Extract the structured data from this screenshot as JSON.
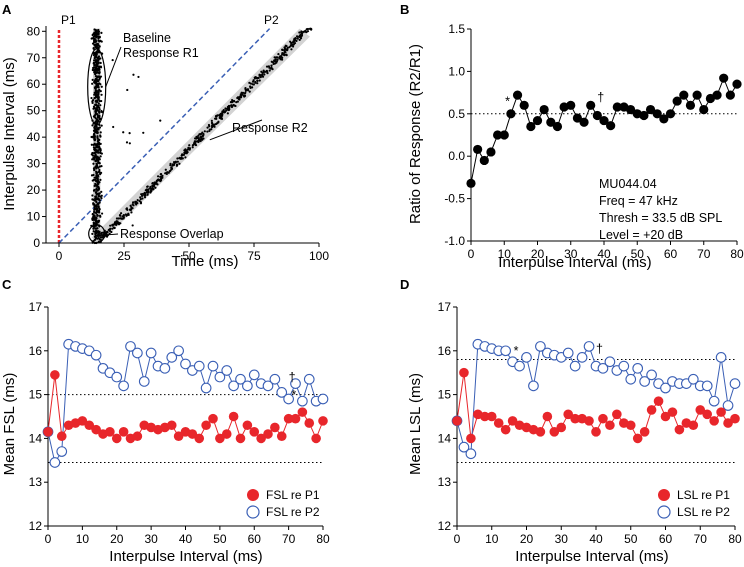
{
  "chart_data": [
    {
      "panel": "A",
      "type": "scatter",
      "xlabel": "Time (ms)",
      "ylabel": "Interpulse Interval (ms)",
      "xlim": [
        -5,
        100
      ],
      "ylim": [
        0,
        82
      ],
      "xticks": [
        0,
        25,
        50,
        75,
        100
      ],
      "yticks": [
        0,
        10,
        20,
        30,
        40,
        50,
        60,
        70,
        80
      ],
      "markers": [
        {
          "name": "P1",
          "color": "#e8262b"
        },
        {
          "name": "P2",
          "color": "#3a5fb5"
        }
      ],
      "annotations": {
        "baseline": [
          "Baseline",
          "Response R1"
        ],
        "response2": "Response R2",
        "overlap": "Response Overlap"
      },
      "series": [
        {
          "name": "Baseline Response R1",
          "latency_ms": 14.5
        },
        {
          "name": "Response R2",
          "latency_offset_ms": 14.5
        }
      ]
    },
    {
      "panel": "B",
      "type": "line",
      "xlabel": "Interpulse Interval (ms)",
      "ylabel": "Ratio of Response (R2/R1)",
      "xlim": [
        0,
        80
      ],
      "ylim": [
        -1.0,
        1.5
      ],
      "xticks": [
        0,
        10,
        20,
        30,
        40,
        50,
        60,
        70,
        80
      ],
      "yticks": [
        "-1.0",
        "-0.5",
        "0.0",
        "0.5",
        "1.0",
        "1.5"
      ],
      "reference_line": 0.5,
      "x": [
        0,
        2,
        4,
        6,
        8,
        10,
        12,
        14,
        16,
        18,
        20,
        22,
        24,
        26,
        28,
        30,
        32,
        34,
        36,
        38,
        40,
        42,
        44,
        46,
        48,
        50,
        52,
        54,
        56,
        58,
        60,
        62,
        64,
        66,
        68,
        70,
        72,
        74,
        76,
        78,
        80
      ],
      "values": [
        -0.32,
        0.08,
        -0.05,
        0.05,
        0.25,
        0.25,
        0.5,
        0.72,
        0.6,
        0.35,
        0.42,
        0.55,
        0.4,
        0.35,
        0.58,
        0.6,
        0.45,
        0.4,
        0.6,
        0.48,
        0.42,
        0.36,
        0.58,
        0.58,
        0.55,
        0.5,
        0.48,
        0.55,
        0.5,
        0.44,
        0.5,
        0.65,
        0.72,
        0.6,
        0.72,
        0.55,
        0.68,
        0.72,
        0.92,
        0.72,
        0.85
      ],
      "markers": [
        {
          "label": "*",
          "x": 11,
          "y": 0.62
        },
        {
          "label": "†",
          "x": 39,
          "y": 0.67
        }
      ],
      "info": [
        "MU044.04",
        "Freq = 47 kHz",
        "Thresh = 33.5 dB SPL",
        "Level = +20 dB"
      ]
    },
    {
      "panel": "C",
      "type": "line",
      "xlabel": "Interpulse Interval (ms)",
      "ylabel": "Mean FSL (ms)",
      "xlim": [
        0,
        80
      ],
      "ylim": [
        12,
        17
      ],
      "xticks": [
        0,
        10,
        20,
        30,
        40,
        50,
        60,
        70,
        80
      ],
      "yticks": [
        12,
        13,
        14,
        15,
        16,
        17
      ],
      "reference_lines": [
        15.0,
        13.45
      ],
      "x": [
        0,
        2,
        4,
        6,
        8,
        10,
        12,
        14,
        16,
        18,
        20,
        22,
        24,
        26,
        28,
        30,
        32,
        34,
        36,
        38,
        40,
        42,
        44,
        46,
        48,
        50,
        52,
        54,
        56,
        58,
        60,
        62,
        64,
        66,
        68,
        70,
        72,
        74,
        76,
        78,
        80
      ],
      "series": [
        {
          "name": "FSL re P1",
          "color": "#e8262b",
          "filled": true,
          "values": [
            14.15,
            15.45,
            14.05,
            14.3,
            14.35,
            14.4,
            14.3,
            14.2,
            14.1,
            14.15,
            14.0,
            14.15,
            14.0,
            14.05,
            14.3,
            14.25,
            14.2,
            14.25,
            14.3,
            14.05,
            14.15,
            14.1,
            14.0,
            14.3,
            14.45,
            14.0,
            14.1,
            14.5,
            14.0,
            14.3,
            14.15,
            14.0,
            14.1,
            14.25,
            14.05,
            14.45,
            14.45,
            14.6,
            14.35,
            14.0,
            14.4
          ]
        },
        {
          "name": "FSL re P2",
          "color": "#3a5fb5",
          "filled": false,
          "values": [
            14.15,
            13.45,
            13.7,
            16.15,
            16.1,
            16.05,
            16.0,
            15.9,
            15.6,
            15.5,
            15.4,
            15.2,
            16.1,
            15.95,
            15.3,
            15.95,
            15.65,
            15.6,
            15.85,
            16.0,
            15.7,
            15.55,
            15.65,
            15.15,
            15.65,
            15.4,
            15.55,
            15.2,
            15.35,
            15.2,
            15.45,
            15.25,
            15.2,
            15.35,
            15.05,
            14.9,
            15.25,
            14.85,
            15.35,
            14.85,
            14.9
          ]
        }
      ],
      "markers": [
        {
          "label": "†",
          "x": 71,
          "y": 15.35
        },
        {
          "label": "*",
          "x": 71.5,
          "y": 14.95
        }
      ]
    },
    {
      "panel": "D",
      "type": "line",
      "xlabel": "Interpulse Interval (ms)",
      "ylabel": "Mean LSL (ms)",
      "xlim": [
        0,
        80
      ],
      "ylim": [
        12,
        17
      ],
      "xticks": [
        0,
        10,
        20,
        30,
        40,
        50,
        60,
        70,
        80
      ],
      "yticks": [
        12,
        13,
        14,
        15,
        16,
        17
      ],
      "reference_lines": [
        15.8,
        13.45
      ],
      "x": [
        0,
        2,
        4,
        6,
        8,
        10,
        12,
        14,
        16,
        18,
        20,
        22,
        24,
        26,
        28,
        30,
        32,
        34,
        36,
        38,
        40,
        42,
        44,
        46,
        48,
        50,
        52,
        54,
        56,
        58,
        60,
        62,
        64,
        66,
        68,
        70,
        72,
        74,
        76,
        78,
        80
      ],
      "series": [
        {
          "name": "LSL re P1",
          "color": "#e8262b",
          "filled": true,
          "values": [
            14.4,
            15.5,
            14.0,
            14.55,
            14.5,
            14.5,
            14.35,
            14.2,
            14.4,
            14.3,
            14.25,
            14.2,
            14.15,
            14.5,
            14.15,
            14.25,
            14.55,
            14.45,
            14.45,
            14.4,
            14.15,
            14.45,
            14.3,
            14.55,
            14.35,
            14.3,
            14.0,
            14.15,
            14.65,
            14.85,
            14.5,
            14.6,
            14.2,
            14.35,
            14.3,
            14.65,
            14.55,
            14.4,
            14.6,
            14.35,
            14.45
          ]
        },
        {
          "name": "LSL re P2",
          "color": "#3a5fb5",
          "filled": false,
          "values": [
            14.4,
            13.8,
            13.65,
            16.15,
            16.1,
            16.05,
            16.0,
            16.0,
            15.75,
            15.65,
            15.85,
            15.2,
            16.1,
            15.95,
            15.9,
            15.85,
            15.95,
            15.65,
            15.85,
            16.1,
            15.65,
            15.6,
            15.75,
            15.55,
            15.65,
            15.35,
            15.6,
            15.3,
            15.45,
            15.25,
            15.15,
            15.3,
            15.25,
            15.25,
            15.35,
            15.2,
            15.2,
            14.85,
            15.85,
            14.75,
            15.25
          ]
        }
      ],
      "markers": [
        {
          "label": "*",
          "x": 17,
          "y": 15.95
        },
        {
          "label": "†",
          "x": 41,
          "y": 16.0
        }
      ]
    }
  ]
}
